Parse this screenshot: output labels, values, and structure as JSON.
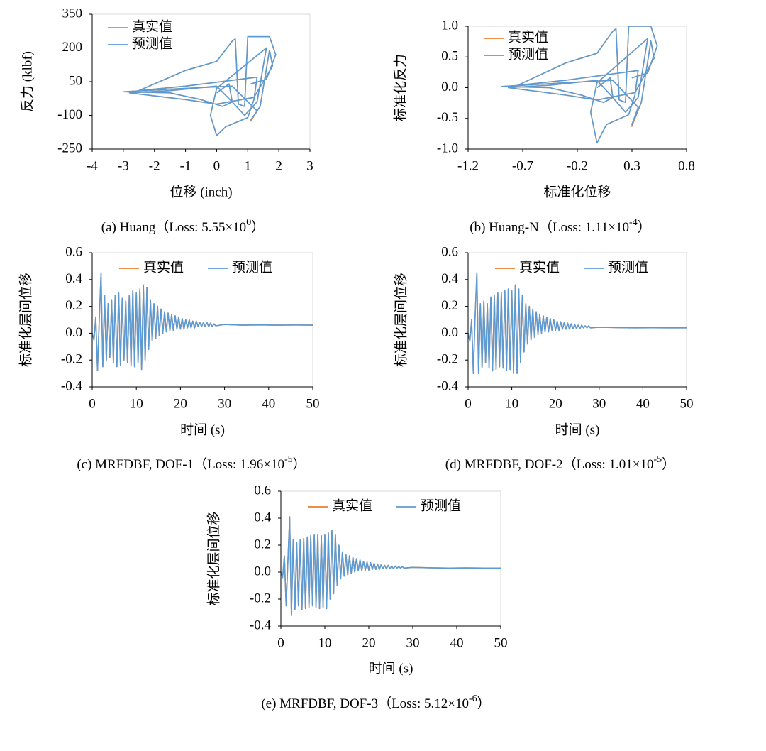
{
  "chart_data": [
    {
      "type": "line",
      "caption": "(a) Huang（Loss: 5.55×10",
      "caption_sup": "0",
      "caption_end": "）",
      "xlabel": "位移 (inch)",
      "ylabel": "反力 (klbf)",
      "legend": "top-left",
      "xlim": [
        -4,
        3
      ],
      "ylim": [
        -250,
        350
      ],
      "xticks": [
        -4,
        -3,
        -2,
        -1,
        0,
        1,
        2,
        3
      ],
      "yticks": [
        -250,
        -100,
        50,
        200,
        350
      ],
      "x": [
        0,
        0.4,
        0.5,
        0.2,
        -0.5,
        -1.5,
        -3,
        -1,
        0.5,
        1.3,
        1.1,
        1.4,
        1.7,
        1.8,
        1.2,
        0,
        -1,
        -2.8,
        -1.5,
        0,
        0.5,
        0.9,
        1.3,
        1.6,
        0,
        -0.2,
        0,
        0.3,
        1,
        1.2,
        1.3,
        -1,
        -2.5,
        -1,
        0,
        0.5,
        0.6,
        0.7,
        0.9,
        1,
        1.7,
        1.9,
        1.6,
        1.1
      ],
      "series": [
        {
          "name": "真实值",
          "color": "#ed7d31",
          "values": [
            0,
            40,
            -40,
            -60,
            -30,
            0,
            5,
            20,
            30,
            -80,
            -125,
            -60,
            190,
            120,
            -20,
            -50,
            -30,
            0,
            10,
            30,
            -40,
            -100,
            -40,
            200,
            20,
            -100,
            -190,
            -150,
            -110,
            -30,
            70,
            30,
            10,
            100,
            140,
            230,
            240,
            -50,
            -60,
            250,
            250,
            170,
            60,
            40
          ]
        },
        {
          "name": "预测值",
          "color": "#5b9bd5",
          "values": [
            0,
            40,
            -40,
            -60,
            -30,
            0,
            5,
            20,
            30,
            -80,
            -120,
            -60,
            190,
            120,
            -20,
            -50,
            -30,
            0,
            10,
            30,
            -40,
            -100,
            -40,
            200,
            20,
            -100,
            -190,
            -150,
            -110,
            -30,
            70,
            30,
            10,
            100,
            140,
            230,
            240,
            -50,
            -60,
            250,
            250,
            170,
            60,
            40
          ]
        }
      ]
    },
    {
      "type": "line",
      "caption": "(b) Huang-N（Loss: 1.11×10",
      "caption_sup": "-4",
      "caption_end": "）",
      "xlabel": "标准化位移",
      "ylabel": "标准化反力",
      "legend": "top-left",
      "xlim": [
        -1.2,
        0.8
      ],
      "ylim": [
        -1,
        1
      ],
      "xticks": [
        -1.2,
        -0.7,
        -0.2,
        0.3,
        0.8
      ],
      "yticks": [
        {
          "value": -1,
          "label": "-1.0"
        },
        -0.5,
        {
          "value": 0,
          "label": "0.0"
        },
        0.5,
        {
          "value": 1,
          "label": "1.0"
        }
      ],
      "x": [
        -0.02,
        0.1,
        0.125,
        0.04,
        -0.165,
        -0.455,
        -0.89,
        -0.31,
        0.125,
        0.357,
        0.299,
        0.386,
        0.473,
        0.502,
        0.328,
        -0.02,
        -0.31,
        -0.832,
        -0.455,
        -0.02,
        0.125,
        0.241,
        0.357,
        0.444,
        -0.02,
        -0.078,
        -0.02,
        0.067,
        0.27,
        0.328,
        0.357,
        -0.31,
        -0.745,
        -0.31,
        -0.02,
        0.125,
        0.154,
        0.183,
        0.241,
        0.27,
        0.473,
        0.531,
        0.444,
        0.299
      ],
      "series": [
        {
          "name": "真实值",
          "color": "#ed7d31",
          "values": [
            0,
            0.16,
            -0.16,
            -0.24,
            -0.12,
            0,
            0.02,
            0.08,
            0.12,
            -0.32,
            -0.63,
            -0.24,
            0.76,
            0.48,
            -0.08,
            -0.2,
            -0.12,
            0,
            0.04,
            0.12,
            -0.16,
            -0.4,
            -0.16,
            0.8,
            0.08,
            -0.4,
            -0.9,
            -0.6,
            -0.44,
            -0.12,
            0.28,
            0.12,
            0.04,
            0.4,
            0.56,
            0.92,
            0.96,
            -0.2,
            -0.24,
            1,
            1,
            0.68,
            0.24,
            0.16
          ]
        },
        {
          "name": "预测值",
          "color": "#5b9bd5",
          "values": [
            0,
            0.16,
            -0.16,
            -0.24,
            -0.12,
            0,
            0.02,
            0.08,
            0.12,
            -0.32,
            -0.6,
            -0.24,
            0.76,
            0.48,
            -0.08,
            -0.2,
            -0.12,
            0,
            0.04,
            0.12,
            -0.16,
            -0.4,
            -0.16,
            0.8,
            0.08,
            -0.4,
            -0.9,
            -0.6,
            -0.44,
            -0.12,
            0.28,
            0.12,
            0.04,
            0.4,
            0.56,
            0.92,
            0.96,
            -0.2,
            -0.24,
            1,
            1,
            0.68,
            0.24,
            0.16
          ]
        }
      ]
    },
    {
      "type": "line",
      "caption": "(c) MRFDBF, DOF-1（Loss: 1.96×10",
      "caption_sup": "-5",
      "caption_end": "）",
      "xlabel": "时间 (s)",
      "ylabel": "标准化层间位移",
      "legend": "top-center",
      "xlim": [
        0,
        50
      ],
      "ylim": [
        -0.4,
        0.6
      ],
      "xticks": [
        0,
        10,
        20,
        30,
        40,
        50
      ],
      "yticks": [
        -0.4,
        -0.2,
        {
          "value": 0,
          "label": "0.0"
        },
        0.2,
        0.4,
        0.6
      ],
      "x": [
        0,
        0.4,
        0.8,
        1.2,
        1.6,
        2,
        2.4,
        2.8,
        3.2,
        3.6,
        4,
        4.4,
        4.8,
        5.2,
        5.6,
        6,
        6.4,
        6.8,
        7.2,
        7.6,
        8,
        8.4,
        8.8,
        9.2,
        9.6,
        10,
        10.4,
        10.8,
        11.2,
        11.6,
        12,
        12.4,
        12.8,
        13.2,
        13.6,
        14,
        14.4,
        14.8,
        15.2,
        15.6,
        16,
        16.4,
        16.8,
        17.2,
        17.6,
        18,
        18.4,
        18.8,
        19.2,
        19.6,
        20,
        20.4,
        20.8,
        21.2,
        21.6,
        22,
        22.4,
        22.8,
        23.2,
        23.6,
        24,
        24.4,
        24.8,
        25.2,
        25.6,
        26,
        26.4,
        26.8,
        27.2,
        27.6,
        28,
        30,
        34,
        38,
        42,
        46,
        50
      ],
      "series": [
        {
          "name": "真实值",
          "color": "#ed7d31",
          "values": [
            0,
            -0.05,
            0.12,
            -0.28,
            0.1,
            0.45,
            -0.25,
            0.28,
            -0.2,
            0.22,
            -0.18,
            0.25,
            -0.22,
            0.28,
            -0.25,
            0.3,
            -0.24,
            0.26,
            -0.2,
            0.24,
            -0.22,
            0.28,
            -0.24,
            0.32,
            -0.25,
            0.3,
            -0.22,
            0.33,
            -0.27,
            0.36,
            -0.2,
            0.34,
            -0.12,
            0.25,
            -0.06,
            0.22,
            -0.04,
            0.2,
            -0.02,
            0.18,
            0,
            0.16,
            0.01,
            0.15,
            0.02,
            0.14,
            0.02,
            0.13,
            0.03,
            0.12,
            0.03,
            0.11,
            0.03,
            0.1,
            0.04,
            0.1,
            0.04,
            0.09,
            0.04,
            0.09,
            0.05,
            0.08,
            0.05,
            0.08,
            0.05,
            0.08,
            0.05,
            0.075,
            0.05,
            0.07,
            0.055,
            0.065,
            0.06,
            0.062,
            0.06,
            0.061,
            0.06
          ]
        },
        {
          "name": "预测值",
          "color": "#5b9bd5",
          "values": [
            0,
            -0.05,
            0.12,
            -0.28,
            0.1,
            0.45,
            -0.25,
            0.28,
            -0.2,
            0.22,
            -0.18,
            0.25,
            -0.22,
            0.28,
            -0.25,
            0.3,
            -0.24,
            0.26,
            -0.2,
            0.24,
            -0.22,
            0.28,
            -0.24,
            0.32,
            -0.25,
            0.3,
            -0.22,
            0.33,
            -0.27,
            0.36,
            -0.2,
            0.34,
            -0.12,
            0.25,
            -0.06,
            0.22,
            -0.04,
            0.2,
            -0.02,
            0.18,
            0,
            0.16,
            0.01,
            0.15,
            0.02,
            0.14,
            0.02,
            0.13,
            0.03,
            0.12,
            0.03,
            0.11,
            0.03,
            0.1,
            0.04,
            0.1,
            0.04,
            0.09,
            0.04,
            0.09,
            0.05,
            0.08,
            0.05,
            0.08,
            0.05,
            0.08,
            0.05,
            0.075,
            0.05,
            0.07,
            0.055,
            0.065,
            0.06,
            0.062,
            0.06,
            0.061,
            0.06
          ]
        }
      ]
    },
    {
      "type": "line",
      "caption": "(d) MRFDBF, DOF-2（Loss: 1.01×10",
      "caption_sup": "-5",
      "caption_end": "）",
      "xlabel": "时间 (s)",
      "ylabel": "标准化层间位移",
      "legend": "top-center",
      "xlim": [
        0,
        50
      ],
      "ylim": [
        -0.4,
        0.6
      ],
      "xticks": [
        0,
        10,
        20,
        30,
        40,
        50
      ],
      "yticks": [
        -0.4,
        -0.2,
        {
          "value": 0,
          "label": "0.0"
        },
        0.2,
        0.4,
        0.6
      ],
      "x": [
        0,
        0.4,
        0.8,
        1.2,
        1.6,
        2,
        2.4,
        2.8,
        3.2,
        3.6,
        4,
        4.4,
        4.8,
        5.2,
        5.6,
        6,
        6.4,
        6.8,
        7.2,
        7.6,
        8,
        8.4,
        8.8,
        9.2,
        9.6,
        10,
        10.4,
        10.8,
        11.2,
        11.6,
        12,
        12.4,
        12.8,
        13.2,
        13.6,
        14,
        14.4,
        14.8,
        15.2,
        15.6,
        16,
        16.4,
        16.8,
        17.2,
        17.6,
        18,
        18.4,
        18.8,
        19.2,
        19.6,
        20,
        20.4,
        20.8,
        21.2,
        21.6,
        22,
        22.4,
        22.8,
        23.2,
        23.6,
        24,
        24.4,
        24.8,
        25.2,
        25.6,
        26,
        26.4,
        26.8,
        27.2,
        27.6,
        28,
        30,
        34,
        38,
        42,
        46,
        50
      ],
      "series": [
        {
          "name": "真实值",
          "color": "#ed7d31",
          "values": [
            0,
            -0.06,
            0.1,
            -0.3,
            0.12,
            0.45,
            -0.3,
            0.22,
            -0.26,
            0.24,
            -0.22,
            0.22,
            -0.26,
            0.27,
            -0.28,
            0.28,
            -0.27,
            0.3,
            -0.25,
            0.3,
            -0.26,
            0.32,
            -0.28,
            0.33,
            -0.27,
            0.32,
            -0.3,
            0.36,
            -0.3,
            0.33,
            -0.22,
            0.28,
            -0.14,
            0.22,
            -0.08,
            0.2,
            -0.05,
            0.18,
            -0.03,
            0.16,
            -0.01,
            0.14,
            0,
            0.13,
            0.01,
            0.12,
            0.01,
            0.11,
            0.02,
            0.1,
            0.02,
            0.09,
            0.02,
            0.085,
            0.03,
            0.08,
            0.03,
            0.075,
            0.03,
            0.07,
            0.035,
            0.065,
            0.035,
            0.06,
            0.035,
            0.06,
            0.04,
            0.055,
            0.04,
            0.055,
            0.04,
            0.045,
            0.042,
            0.04,
            0.041,
            0.04,
            0.04
          ]
        },
        {
          "name": "预测值",
          "color": "#5b9bd5",
          "values": [
            0,
            -0.06,
            0.1,
            -0.3,
            0.12,
            0.45,
            -0.3,
            0.22,
            -0.26,
            0.24,
            -0.22,
            0.22,
            -0.26,
            0.27,
            -0.28,
            0.28,
            -0.27,
            0.3,
            -0.25,
            0.3,
            -0.26,
            0.32,
            -0.28,
            0.33,
            -0.27,
            0.32,
            -0.3,
            0.36,
            -0.3,
            0.33,
            -0.22,
            0.28,
            -0.14,
            0.22,
            -0.08,
            0.2,
            -0.05,
            0.18,
            -0.03,
            0.16,
            -0.01,
            0.14,
            0,
            0.13,
            0.01,
            0.12,
            0.01,
            0.11,
            0.02,
            0.1,
            0.02,
            0.09,
            0.02,
            0.085,
            0.03,
            0.08,
            0.03,
            0.075,
            0.03,
            0.07,
            0.035,
            0.065,
            0.035,
            0.06,
            0.035,
            0.06,
            0.04,
            0.055,
            0.04,
            0.055,
            0.04,
            0.045,
            0.042,
            0.04,
            0.041,
            0.04,
            0.04
          ]
        }
      ]
    },
    {
      "type": "line",
      "caption": "(e) MRFDBF, DOF-3（Loss: 5.12×10",
      "caption_sup": "-6",
      "caption_end": "）",
      "xlabel": "时间 (s)",
      "ylabel": "标准化层间位移",
      "legend": "top-center",
      "xlim": [
        0,
        50
      ],
      "ylim": [
        -0.4,
        0.6
      ],
      "xticks": [
        0,
        10,
        20,
        30,
        40,
        50
      ],
      "yticks": [
        -0.4,
        -0.2,
        {
          "value": 0,
          "label": "0.0"
        },
        0.2,
        0.4,
        0.6
      ],
      "x": [
        0,
        0.4,
        0.8,
        1.2,
        1.6,
        2,
        2.4,
        2.8,
        3.2,
        3.6,
        4,
        4.4,
        4.8,
        5.2,
        5.6,
        6,
        6.4,
        6.8,
        7.2,
        7.6,
        8,
        8.4,
        8.8,
        9.2,
        9.6,
        10,
        10.4,
        10.8,
        11.2,
        11.6,
        12,
        12.4,
        12.8,
        13.2,
        13.6,
        14,
        14.4,
        14.8,
        15.2,
        15.6,
        16,
        16.4,
        16.8,
        17.2,
        17.6,
        18,
        18.4,
        18.8,
        19.2,
        19.6,
        20,
        20.4,
        20.8,
        21.2,
        21.6,
        22,
        22.4,
        22.8,
        23.2,
        23.6,
        24,
        24.4,
        24.8,
        25.2,
        25.6,
        26,
        26.4,
        26.8,
        27.2,
        27.6,
        28,
        30,
        34,
        38,
        42,
        46,
        50
      ],
      "series": [
        {
          "name": "真实值",
          "color": "#ed7d31",
          "values": [
            0,
            -0.04,
            0.12,
            -0.25,
            0.08,
            0.41,
            -0.32,
            0.24,
            -0.28,
            0.22,
            -0.25,
            0.24,
            -0.28,
            0.25,
            -0.27,
            0.26,
            -0.26,
            0.27,
            -0.25,
            0.28,
            -0.26,
            0.28,
            -0.27,
            0.27,
            -0.26,
            0.28,
            -0.27,
            0.29,
            -0.2,
            0.31,
            -0.16,
            0.28,
            -0.1,
            0.2,
            -0.05,
            0.15,
            -0.03,
            0.13,
            -0.02,
            0.12,
            -0.01,
            0.11,
            0,
            0.1,
            0.01,
            0.09,
            0.01,
            0.08,
            0.015,
            0.075,
            0.015,
            0.07,
            0.02,
            0.065,
            0.02,
            0.06,
            0.02,
            0.055,
            0.025,
            0.05,
            0.025,
            0.05,
            0.025,
            0.045,
            0.025,
            0.045,
            0.03,
            0.04,
            0.03,
            0.04,
            0.03,
            0.035,
            0.032,
            0.03,
            0.031,
            0.03,
            0.03
          ]
        },
        {
          "name": "预测值",
          "color": "#5b9bd5",
          "values": [
            0,
            -0.04,
            0.12,
            -0.25,
            0.08,
            0.41,
            -0.32,
            0.24,
            -0.28,
            0.22,
            -0.25,
            0.24,
            -0.28,
            0.25,
            -0.27,
            0.26,
            -0.26,
            0.27,
            -0.25,
            0.28,
            -0.26,
            0.28,
            -0.27,
            0.27,
            -0.26,
            0.28,
            -0.27,
            0.29,
            -0.2,
            0.31,
            -0.16,
            0.28,
            -0.1,
            0.2,
            -0.05,
            0.15,
            -0.03,
            0.13,
            -0.02,
            0.12,
            -0.01,
            0.11,
            0,
            0.1,
            0.01,
            0.09,
            0.01,
            0.08,
            0.015,
            0.075,
            0.015,
            0.07,
            0.02,
            0.065,
            0.02,
            0.06,
            0.02,
            0.055,
            0.025,
            0.05,
            0.025,
            0.05,
            0.025,
            0.045,
            0.025,
            0.045,
            0.03,
            0.04,
            0.03,
            0.04,
            0.03,
            0.035,
            0.032,
            0.03,
            0.031,
            0.03,
            0.03
          ]
        }
      ]
    }
  ]
}
